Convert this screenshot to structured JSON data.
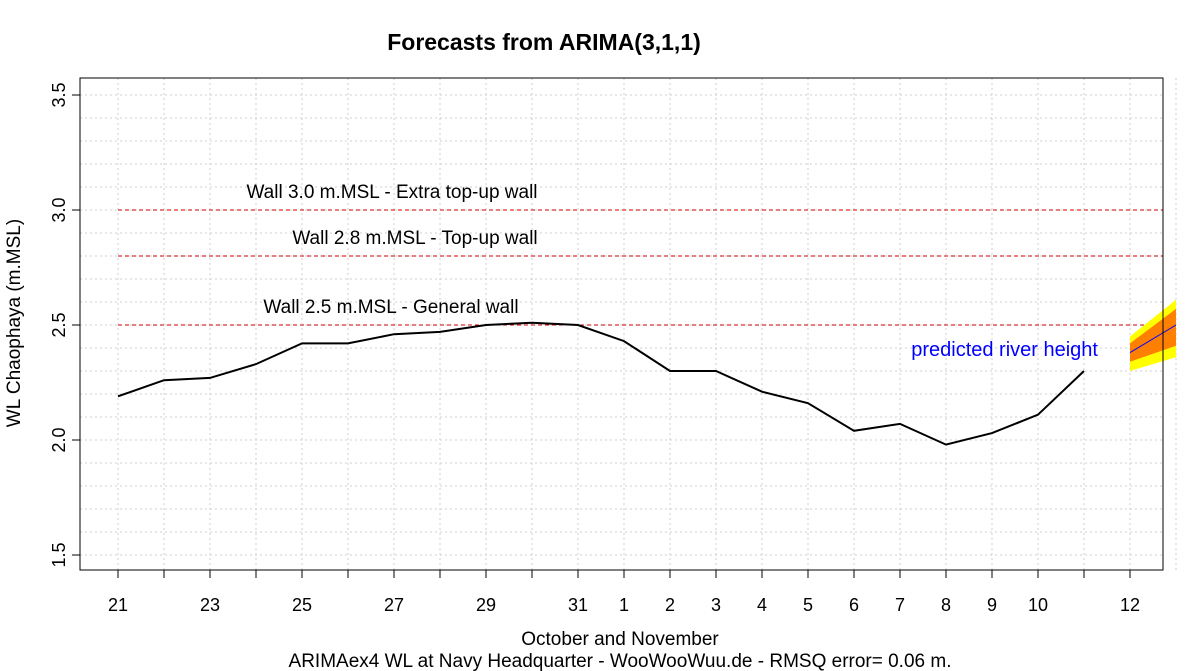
{
  "chart_data": {
    "type": "line",
    "title": "Forecasts from ARIMA(3,1,1)",
    "xlabel": "October and November",
    "ylabel": "WL Chaophaya (m.MSL)",
    "footer": "ARIMAex4 WL at Navy Headquarter - WooWooWuu.de - RMSQ error= 0.06  m.",
    "ylim": [
      1.45,
      3.6
    ],
    "yticks": [
      "1.5",
      "2.0",
      "2.5",
      "3.0",
      "3.5"
    ],
    "ytick_values": [
      1.5,
      2.0,
      2.5,
      3.0,
      3.5
    ],
    "x_days": [
      "21",
      "22",
      "23",
      "24",
      "25",
      "26",
      "27",
      "28",
      "29",
      "30",
      "31",
      "1",
      "2",
      "3",
      "4",
      "5",
      "6",
      "7",
      "8",
      "9",
      "10",
      "11",
      "12",
      "13"
    ],
    "xtick_labels": [
      "21",
      "",
      "23",
      "",
      "25",
      "",
      "27",
      "",
      "29",
      "",
      "31",
      "1",
      "2",
      "3",
      "4",
      "5",
      "6",
      "7",
      "8",
      "9",
      "10",
      "",
      "12",
      ""
    ],
    "grid": true,
    "series": [
      {
        "values": [
          2.19,
          2.26,
          2.27,
          2.33,
          2.42,
          2.42,
          2.46,
          2.47,
          2.5,
          2.51,
          2.5,
          2.43,
          2.3,
          2.3,
          2.21,
          2.16,
          2.04,
          2.07,
          1.98,
          2.03,
          2.11,
          2.3
        ],
        "color": "#000000"
      }
    ],
    "forecast": {
      "x_index": [
        22,
        23
      ],
      "mean": [
        2.38,
        2.5
      ],
      "lo80": [
        2.34,
        2.41
      ],
      "hi80": [
        2.42,
        2.57
      ],
      "lo95": [
        2.3,
        2.36
      ],
      "hi95": [
        2.45,
        2.61
      ],
      "color_mean": "#0000ff",
      "color_80": "#ff7f00",
      "color_95": "#ffff00"
    },
    "thresholds": [
      {
        "value": 3.0,
        "label": "Wall 3.0 m.MSL - Extra top-up wall",
        "color": "#cc0000"
      },
      {
        "value": 2.8,
        "label": "Wall 2.8 m.MSL - Top-up wall",
        "color": "#cc0000"
      },
      {
        "value": 2.5,
        "label": "Wall 2.5 m.MSL - General wall",
        "color": "#cc0000"
      }
    ],
    "annotation": {
      "text": "predicted river height",
      "color": "#0000ff"
    }
  }
}
